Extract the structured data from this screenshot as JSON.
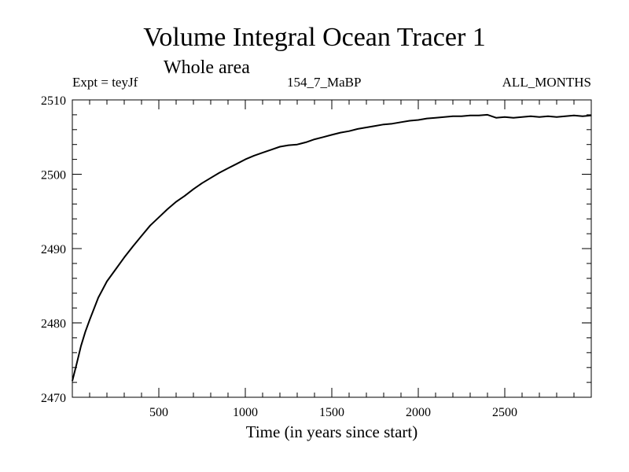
{
  "chart_data": {
    "type": "line",
    "title": "Volume Integral Ocean Tracer 1",
    "subtitle": "Whole area",
    "annotations": {
      "experiment": "Expt = teyJf",
      "run": "154_7_MaBP",
      "period": "ALL_MONTHS"
    },
    "xlabel": "Time (in years since start)",
    "ylabel": "",
    "xlim": [
      0,
      3000
    ],
    "ylim": [
      2470,
      2510
    ],
    "xticks": [
      500,
      1000,
      1500,
      2000,
      2500
    ],
    "xtick_labels": [
      "500",
      "1000",
      "1500",
      "2000",
      "2500"
    ],
    "yticks": [
      2470,
      2480,
      2490,
      2500,
      2510
    ],
    "ytick_labels": [
      "2470",
      "2480",
      "2490",
      "2500",
      "2510"
    ],
    "x_minor_step": 100,
    "y_minor_step": 2,
    "grid": false,
    "series": [
      {
        "name": "Volume Integral Ocean Tracer 1",
        "color": "#000000",
        "x": [
          0,
          25,
          50,
          75,
          100,
          150,
          200,
          250,
          300,
          350,
          400,
          450,
          500,
          550,
          600,
          650,
          700,
          750,
          800,
          850,
          900,
          950,
          1000,
          1050,
          1100,
          1150,
          1200,
          1250,
          1300,
          1350,
          1400,
          1450,
          1500,
          1550,
          1600,
          1650,
          1700,
          1750,
          1800,
          1850,
          1900,
          1950,
          2000,
          2050,
          2100,
          2150,
          2200,
          2250,
          2300,
          2350,
          2400,
          2450,
          2500,
          2550,
          2600,
          2650,
          2700,
          2750,
          2800,
          2850,
          2900,
          2950,
          3000
        ],
        "values": [
          2472.2,
          2474.5,
          2476.9,
          2478.8,
          2480.4,
          2483.4,
          2485.6,
          2487.2,
          2488.8,
          2490.3,
          2491.7,
          2493.1,
          2494.2,
          2495.3,
          2496.3,
          2497.1,
          2498.0,
          2498.8,
          2499.5,
          2500.2,
          2500.8,
          2501.4,
          2502.0,
          2502.5,
          2502.9,
          2503.3,
          2503.7,
          2503.9,
          2504.0,
          2504.3,
          2504.7,
          2505.0,
          2505.3,
          2505.6,
          2505.8,
          2506.1,
          2506.3,
          2506.5,
          2506.7,
          2506.8,
          2507.0,
          2507.2,
          2507.3,
          2507.5,
          2507.6,
          2507.7,
          2507.8,
          2507.8,
          2507.9,
          2507.9,
          2508.0,
          2507.6,
          2507.7,
          2507.6,
          2507.7,
          2507.8,
          2507.7,
          2507.8,
          2507.7,
          2507.8,
          2507.9,
          2507.8,
          2507.9
        ]
      }
    ]
  }
}
